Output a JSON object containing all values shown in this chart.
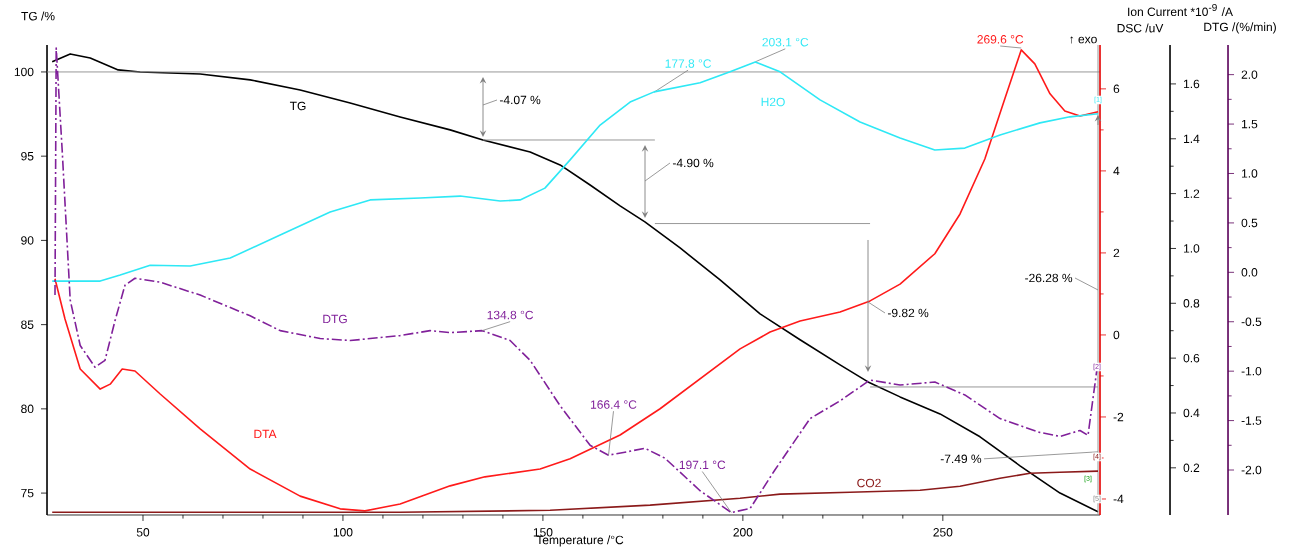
{
  "chart_data": [
    {
      "type": "line",
      "xlabel": "Temperature /°C",
      "ylabel": "TG /%",
      "y2label": "DSC /uV",
      "y3label": "Ion Current *10$^{-9}$ /A",
      "xlim": [
        26,
        289.3
      ],
      "xticks": [
        50,
        100,
        150,
        200,
        250
      ],
      "ylim": [
        73.7,
        101.6
      ],
      "yticks": [
        75,
        80,
        85,
        90,
        95,
        100
      ],
      "y2lim": [
        -4.39,
        7.07
      ],
      "y2ticks": [
        -4,
        -2,
        0,
        2,
        4,
        6
      ],
      "y3lim": [
        0.028,
        1.742
      ],
      "y3ticks": [
        0.2,
        0.4,
        0.6,
        0.8,
        {
          "value": 1.0,
          "label": "1.0"
        },
        1.2,
        1.4,
        1.6
      ],
      "grid": false,
      "legend": false,
      "marker": "none",
      "series": [
        {
          "name": "TG",
          "color": "#000000",
          "line_style": "solid",
          "x": [
            27.3,
            31.8,
            36.8,
            43.8,
            49.3,
            64.3,
            76.8,
            89.3,
            101.8,
            114.3,
            126.8,
            135,
            146.8,
            154.3,
            161.8,
            169.3,
            175.5,
            184.3,
            194.3,
            204.3,
            214.3,
            224.3,
            231.3,
            239.3,
            249.3,
            259.3,
            269.3,
            279.3,
            288.8
          ],
          "values": [
            100.6,
            101.07,
            100.83,
            100.12,
            100.0,
            99.88,
            99.53,
            98.93,
            98.16,
            97.33,
            96.56,
            95.96,
            95.25,
            94.48,
            93.29,
            92.05,
            91.1,
            89.55,
            87.66,
            85.64,
            84.1,
            82.61,
            81.6,
            80.71,
            79.7,
            78.34,
            76.62,
            75.0,
            73.89
          ]
        },
        {
          "name": "DTA",
          "color": "#ff1a1a",
          "axis": "y2",
          "line_style": "solid",
          "x": [
            28,
            30.5,
            34.3,
            39.3,
            41.8,
            44.8,
            48,
            54.3,
            64.3,
            76.8,
            89.3,
            99.3,
            105.5,
            114.3,
            126.8,
            135.5,
            149.3,
            156.8,
            169.3,
            179.3,
            189.3,
            199.3,
            206.8,
            214.3,
            224.3,
            231.8,
            239.3,
            248,
            254.3,
            260.5,
            265.5,
            269.6,
            273,
            276.8,
            280.5,
            284.3,
            288.8
          ],
          "values": [
            1.37,
            0.39,
            -0.83,
            -1.32,
            -1.2,
            -0.83,
            -0.88,
            -1.44,
            -2.29,
            -3.27,
            -3.93,
            -4.24,
            -4.29,
            -4.12,
            -3.68,
            -3.46,
            -3.27,
            -3.02,
            -2.44,
            -1.8,
            -1.07,
            -0.34,
            0.07,
            0.34,
            0.56,
            0.83,
            1.24,
            1.98,
            2.95,
            4.29,
            5.76,
            6.95,
            6.61,
            5.88,
            5.46,
            5.34,
            5.44
          ]
        },
        {
          "name": "H2O",
          "color": "#2ee8f5",
          "axis": "y3",
          "line_style": "solid",
          "x": [
            27.3,
            39.3,
            44.3,
            51.8,
            61.8,
            71.8,
            84.3,
            96.8,
            106.8,
            119.3,
            129.3,
            139.3,
            144.3,
            150.5,
            156.8,
            164.3,
            171.8,
            177.8,
            189.3,
            196.8,
            203.1,
            209.3,
            219.3,
            229.3,
            239.3,
            248,
            255.5,
            264.3,
            274.3,
            281.8,
            288.8
          ],
          "values": [
            0.881,
            0.881,
            0.903,
            0.939,
            0.936,
            0.965,
            1.049,
            1.133,
            1.177,
            1.184,
            1.191,
            1.173,
            1.177,
            1.22,
            1.323,
            1.45,
            1.534,
            1.571,
            1.604,
            1.644,
            1.68,
            1.644,
            1.542,
            1.461,
            1.403,
            1.359,
            1.366,
            1.414,
            1.458,
            1.48,
            1.491
          ]
        },
        {
          "name": "CO2",
          "color": "#8b1a1a",
          "axis": "y3",
          "line_style": "solid",
          "x": [
            27.3,
            64.3,
            114.3,
            151.8,
            176.8,
            199.3,
            209.3,
            226.8,
            244.3,
            254.3,
            264.3,
            271.8,
            279.3,
            288.8
          ],
          "values": [
            0.038,
            0.038,
            0.038,
            0.045,
            0.064,
            0.089,
            0.104,
            0.111,
            0.118,
            0.133,
            0.162,
            0.18,
            0.184,
            0.188
          ]
        },
        {
          "color": "#8c8c8c",
          "line_style": "solid",
          "x": [
            135,
            178
          ],
          "values": [
            95.96,
            95.96
          ]
        },
        {
          "color": "#8c8c8c",
          "line_style": "solid",
          "x": [
            178,
            231.8
          ],
          "values": [
            91.0,
            91.0
          ]
        },
        {
          "color": "#8c8c8c",
          "line_style": "solid",
          "x": [
            231.8,
            288.8
          ],
          "values": [
            81.3,
            81.3
          ]
        }
      ],
      "ref_lines": [
        {
          "axis": "y",
          "value": 100,
          "color": "#8c8c8c"
        },
        {
          "axis": "x",
          "value": 288.8,
          "color": "#8c8c8c"
        }
      ],
      "annotations": [
        "-4.07 %",
        "-4.90 %",
        "-9.82 %",
        {
          "text": "177.8 °C",
          "x": 177.8,
          "y": 98.8
        },
        {
          "text": "203.1 °C",
          "x": 203.1,
          "y": 100.6
        },
        {
          "text": "269.6 °C",
          "x": 269.6,
          "y": 101.42
        },
        "-26.28 %",
        {
          "text": "-7.49 %",
          "x": 288.8,
          "y": 77.45
        },
        "↑ exo",
        "[1]",
        "[4]",
        "[3]",
        "[5]"
      ]
    },
    {
      "type": "line",
      "ylabel": "DTG /(%/min)",
      "tick_labels": "y",
      "xlim": [
        26,
        289.3
      ],
      "ylim": [
        -2.455,
        2.3
      ],
      "yticks": [
        {
          "value": -2.0,
          "label": "-2.0"
        },
        -1.5,
        {
          "value": -1.0,
          "label": "-1.0"
        },
        -0.5,
        {
          "value": 0.0,
          "label": "0.0"
        },
        0.5,
        {
          "value": 1.0,
          "label": "1.0"
        },
        1.5,
        {
          "value": 2.0,
          "label": "2.0"
        }
      ],
      "grid": false,
      "legend": false,
      "marker": "none",
      "series": [
        {
          "name": "DTG",
          "color": "#80209a",
          "line_style": "dashed",
          "x": [
            28,
            28.3,
            29.8,
            31.8,
            34.3,
            38,
            40.5,
            43,
            45.5,
            48,
            54.3,
            64.3,
            76.8,
            84.3,
            94.3,
            101.8,
            114.3,
            121.8,
            126.8,
            134.8,
            141.8,
            146.8,
            154.3,
            161.8,
            166.4,
            170.5,
            175.5,
            180.5,
            189.3,
            197.1,
            201.8,
            208,
            216.8,
            224.3,
            231.8,
            239.3,
            248,
            255.5,
            264.3,
            274.3,
            279.3,
            284.3,
            286.3,
            288.5
          ],
          "values": [
            -0.23,
            2.27,
            1.23,
            -0.28,
            -0.74,
            -0.96,
            -0.89,
            -0.49,
            -0.13,
            -0.06,
            -0.1,
            -0.23,
            -0.44,
            -0.59,
            -0.67,
            -0.69,
            -0.64,
            -0.59,
            -0.61,
            -0.59,
            -0.69,
            -0.89,
            -1.35,
            -1.75,
            -1.85,
            -1.82,
            -1.78,
            -1.88,
            -2.21,
            -2.43,
            -2.39,
            -2.0,
            -1.48,
            -1.3,
            -1.09,
            -1.14,
            -1.11,
            -1.24,
            -1.48,
            -1.62,
            -1.66,
            -1.6,
            -1.65,
            -0.99
          ]
        }
      ],
      "annotations": [
        {
          "text": "134.8 °C",
          "x": 134.8,
          "y": -0.59
        },
        {
          "text": "166.4 °C",
          "x": 166.4,
          "y": -1.85
        },
        {
          "text": "197.1 °C",
          "x": 197.1,
          "y": -2.43
        },
        "[2]"
      ]
    }
  ]
}
